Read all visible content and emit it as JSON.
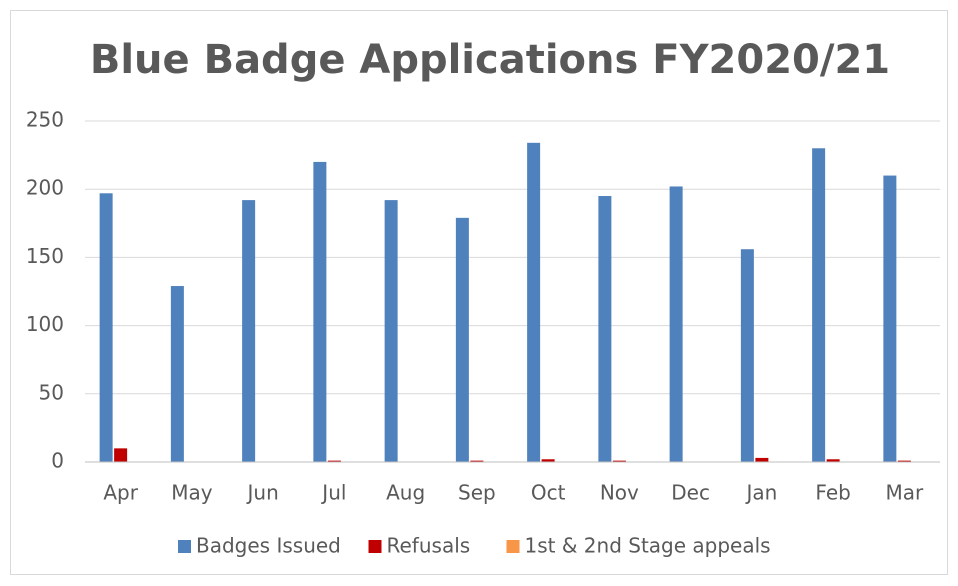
{
  "chart_data": {
    "type": "bar",
    "title": "Blue Badge Applications FY2020/21",
    "categories": [
      "Apr",
      "May",
      "Jun",
      "Jul",
      "Aug",
      "Sep",
      "Oct",
      "Nov",
      "Dec",
      "Jan",
      "Feb",
      "Mar"
    ],
    "series": [
      {
        "name": "Badges Issued",
        "color": "#4f81bd",
        "values": [
          197,
          129,
          192,
          220,
          192,
          179,
          234,
          195,
          202,
          156,
          230,
          210
        ]
      },
      {
        "name": "Refusals",
        "color": "#c00000",
        "values": [
          10,
          0,
          0,
          1,
          0,
          1,
          2,
          1,
          0,
          3,
          2,
          1
        ]
      },
      {
        "name": "1st & 2nd Stage appeals",
        "color": "#f79646",
        "values": [
          0,
          0,
          0,
          0,
          0,
          0,
          0,
          0,
          0,
          0,
          0,
          0
        ]
      }
    ],
    "ylim": [
      0,
      250
    ],
    "yticks": [
      0,
      50,
      100,
      150,
      200,
      250
    ],
    "grid": true,
    "legend": "bottom"
  }
}
